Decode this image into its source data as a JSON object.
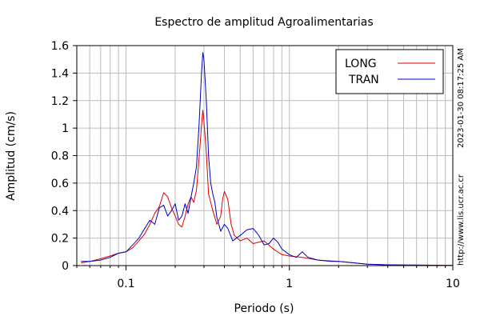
{
  "chart_data": {
    "type": "line",
    "title": "Espectro de amplitud Agroalimentarias",
    "xlabel": "Periodo (s)",
    "ylabel": "Amplitud (cm/s)",
    "x_scale": "log",
    "xlim": [
      0.05,
      10
    ],
    "ylim": [
      0,
      1.6
    ],
    "x_ticks": [
      0.1,
      1,
      10
    ],
    "x_tick_labels": [
      "0.1",
      "1",
      "10"
    ],
    "y_ticks": [
      0,
      0.2,
      0.4,
      0.6,
      0.8,
      1,
      1.2,
      1.4,
      1.6
    ],
    "y_tick_labels": [
      "0",
      "0.2",
      "0.4",
      "0.6",
      "0.8",
      "1",
      "1.2",
      "1.4",
      "1.6"
    ],
    "grid": true,
    "legend_position": "top-right",
    "side_texts": {
      "timestamp": "2023-01-30 08:17:25 AM",
      "url": "http://www.lis.ucr.ac.cr"
    },
    "series": [
      {
        "name": "LONG",
        "color": "#e00000",
        "points": [
          [
            0.053,
            0.02
          ],
          [
            0.06,
            0.03
          ],
          [
            0.07,
            0.05
          ],
          [
            0.08,
            0.07
          ],
          [
            0.09,
            0.09
          ],
          [
            0.1,
            0.1
          ],
          [
            0.11,
            0.13
          ],
          [
            0.12,
            0.18
          ],
          [
            0.13,
            0.23
          ],
          [
            0.14,
            0.3
          ],
          [
            0.15,
            0.38
          ],
          [
            0.16,
            0.43
          ],
          [
            0.17,
            0.53
          ],
          [
            0.18,
            0.5
          ],
          [
            0.19,
            0.42
          ],
          [
            0.2,
            0.36
          ],
          [
            0.21,
            0.3
          ],
          [
            0.22,
            0.28
          ],
          [
            0.23,
            0.36
          ],
          [
            0.24,
            0.45
          ],
          [
            0.25,
            0.5
          ],
          [
            0.26,
            0.46
          ],
          [
            0.27,
            0.55
          ],
          [
            0.28,
            0.78
          ],
          [
            0.29,
            1.02
          ],
          [
            0.295,
            1.13
          ],
          [
            0.3,
            1.05
          ],
          [
            0.31,
            0.82
          ],
          [
            0.32,
            0.52
          ],
          [
            0.34,
            0.4
          ],
          [
            0.36,
            0.3
          ],
          [
            0.38,
            0.36
          ],
          [
            0.39,
            0.48
          ],
          [
            0.4,
            0.54
          ],
          [
            0.42,
            0.48
          ],
          [
            0.44,
            0.3
          ],
          [
            0.46,
            0.22
          ],
          [
            0.5,
            0.18
          ],
          [
            0.55,
            0.2
          ],
          [
            0.6,
            0.16
          ],
          [
            0.7,
            0.18
          ],
          [
            0.8,
            0.12
          ],
          [
            0.9,
            0.08
          ],
          [
            1,
            0.07
          ],
          [
            1.2,
            0.06
          ],
          [
            1.5,
            0.04
          ],
          [
            2,
            0.03
          ],
          [
            2.5,
            0.02
          ],
          [
            3,
            0.01
          ],
          [
            4,
            0.005
          ],
          [
            6,
            0.003
          ],
          [
            10,
            0.002
          ]
        ]
      },
      {
        "name": "TRAN",
        "color": "#0000c0",
        "points": [
          [
            0.053,
            0.03
          ],
          [
            0.06,
            0.03
          ],
          [
            0.07,
            0.04
          ],
          [
            0.08,
            0.06
          ],
          [
            0.09,
            0.09
          ],
          [
            0.1,
            0.1
          ],
          [
            0.11,
            0.15
          ],
          [
            0.12,
            0.2
          ],
          [
            0.13,
            0.27
          ],
          [
            0.14,
            0.33
          ],
          [
            0.15,
            0.3
          ],
          [
            0.16,
            0.42
          ],
          [
            0.17,
            0.44
          ],
          [
            0.18,
            0.36
          ],
          [
            0.19,
            0.4
          ],
          [
            0.2,
            0.45
          ],
          [
            0.21,
            0.33
          ],
          [
            0.22,
            0.36
          ],
          [
            0.23,
            0.45
          ],
          [
            0.24,
            0.38
          ],
          [
            0.25,
            0.5
          ],
          [
            0.26,
            0.6
          ],
          [
            0.27,
            0.72
          ],
          [
            0.28,
            1.02
          ],
          [
            0.29,
            1.4
          ],
          [
            0.295,
            1.55
          ],
          [
            0.3,
            1.5
          ],
          [
            0.31,
            1.2
          ],
          [
            0.32,
            0.8
          ],
          [
            0.33,
            0.6
          ],
          [
            0.34,
            0.52
          ],
          [
            0.35,
            0.46
          ],
          [
            0.36,
            0.35
          ],
          [
            0.38,
            0.25
          ],
          [
            0.4,
            0.3
          ],
          [
            0.42,
            0.27
          ],
          [
            0.45,
            0.18
          ],
          [
            0.5,
            0.22
          ],
          [
            0.55,
            0.26
          ],
          [
            0.6,
            0.27
          ],
          [
            0.65,
            0.22
          ],
          [
            0.7,
            0.15
          ],
          [
            0.75,
            0.16
          ],
          [
            0.8,
            0.2
          ],
          [
            0.85,
            0.17
          ],
          [
            0.9,
            0.12
          ],
          [
            1,
            0.08
          ],
          [
            1.1,
            0.06
          ],
          [
            1.2,
            0.1
          ],
          [
            1.3,
            0.06
          ],
          [
            1.5,
            0.04
          ],
          [
            1.8,
            0.03
          ],
          [
            2,
            0.03
          ],
          [
            2.5,
            0.02
          ],
          [
            3,
            0.01
          ],
          [
            4,
            0.006
          ],
          [
            6,
            0.004
          ],
          [
            10,
            0.002
          ]
        ]
      }
    ]
  }
}
